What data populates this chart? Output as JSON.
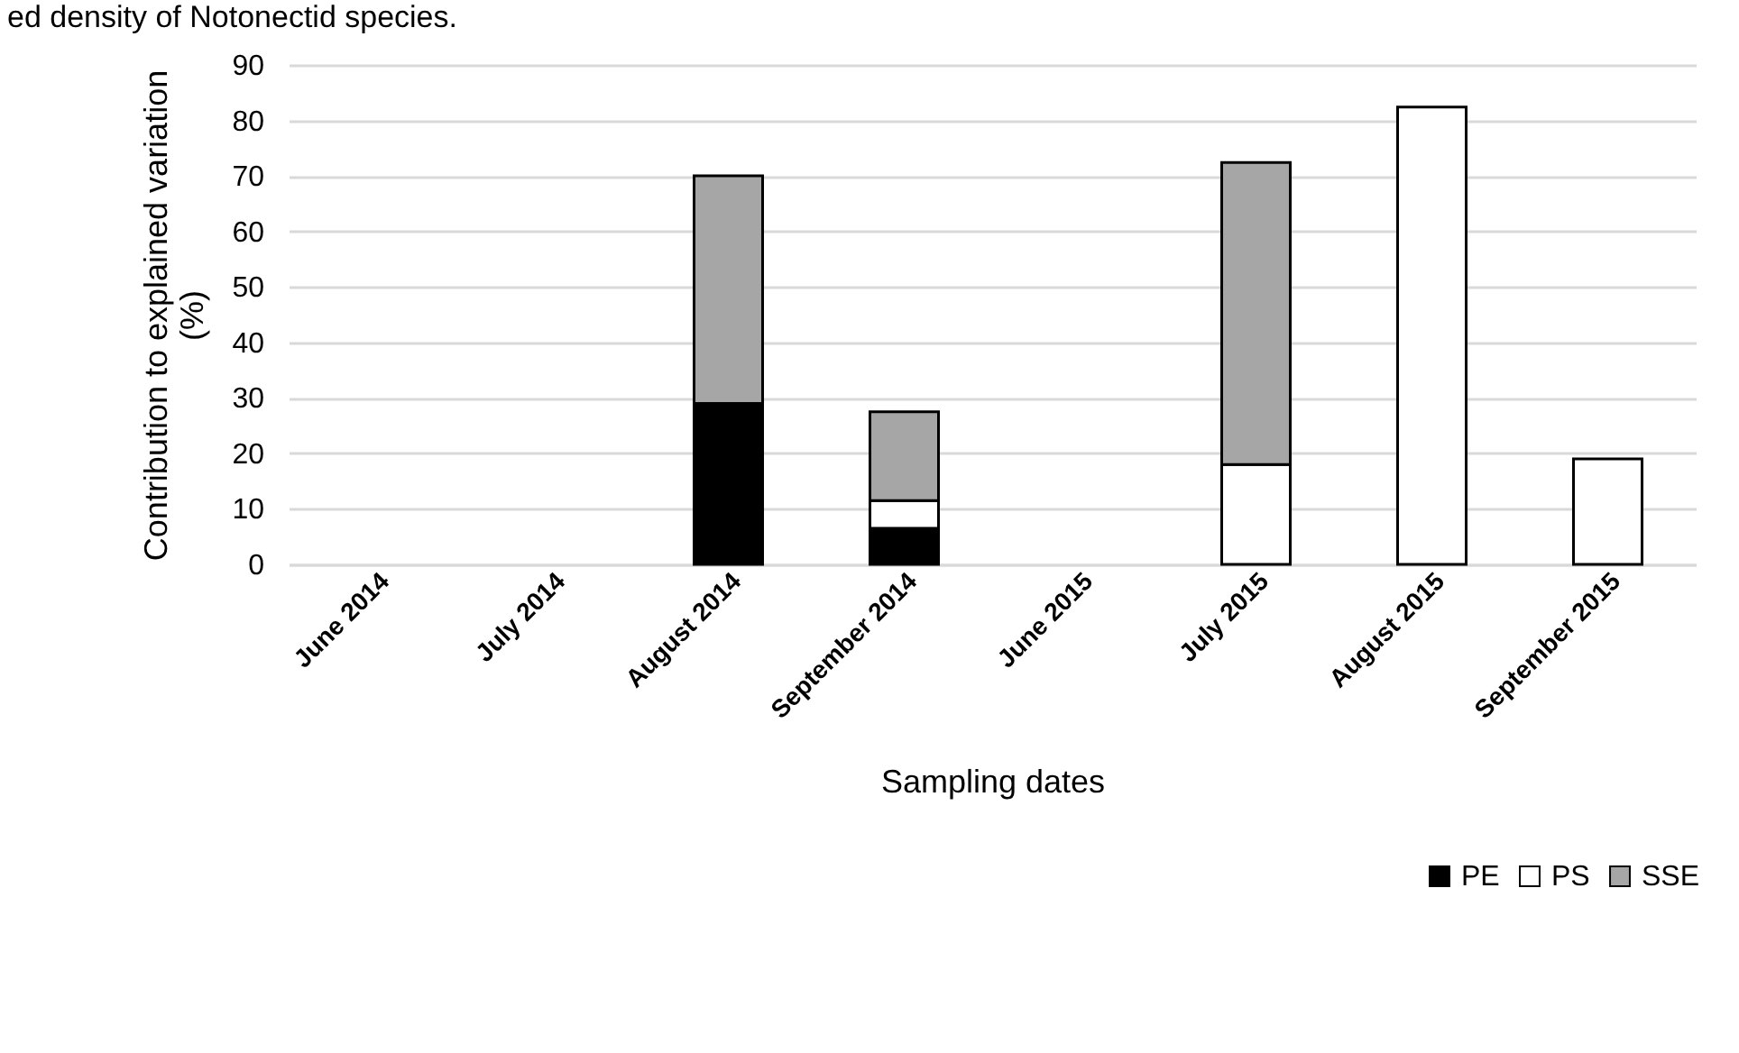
{
  "chart_data": {
    "type": "bar",
    "title": "ed density of Notonectid species.",
    "xlabel": "Sampling dates",
    "ylabel": "Contribution to explained variation\n(%)",
    "categories": [
      "June 2014",
      "July 2014",
      "August 2014",
      "September 2014",
      "June 2015",
      "July 2015",
      "August 2015",
      "September 2015"
    ],
    "series": [
      {
        "name": "PE",
        "color": "#000000",
        "values": [
          null,
          null,
          29,
          6.5,
          null,
          null,
          null,
          null
        ]
      },
      {
        "name": "PS",
        "color": "#ffffff",
        "values": [
          null,
          null,
          null,
          5,
          null,
          18,
          82.4,
          19
        ]
      },
      {
        "name": "SSE",
        "color": "#a6a6a6",
        "values": [
          null,
          null,
          41,
          16,
          null,
          54.4,
          null,
          null
        ]
      }
    ],
    "stacked": true,
    "ylim": [
      0,
      90
    ],
    "yticks": [
      0,
      10,
      20,
      30,
      40,
      50,
      60,
      70,
      80,
      90
    ],
    "grid": "y",
    "legend": "bottom right"
  }
}
